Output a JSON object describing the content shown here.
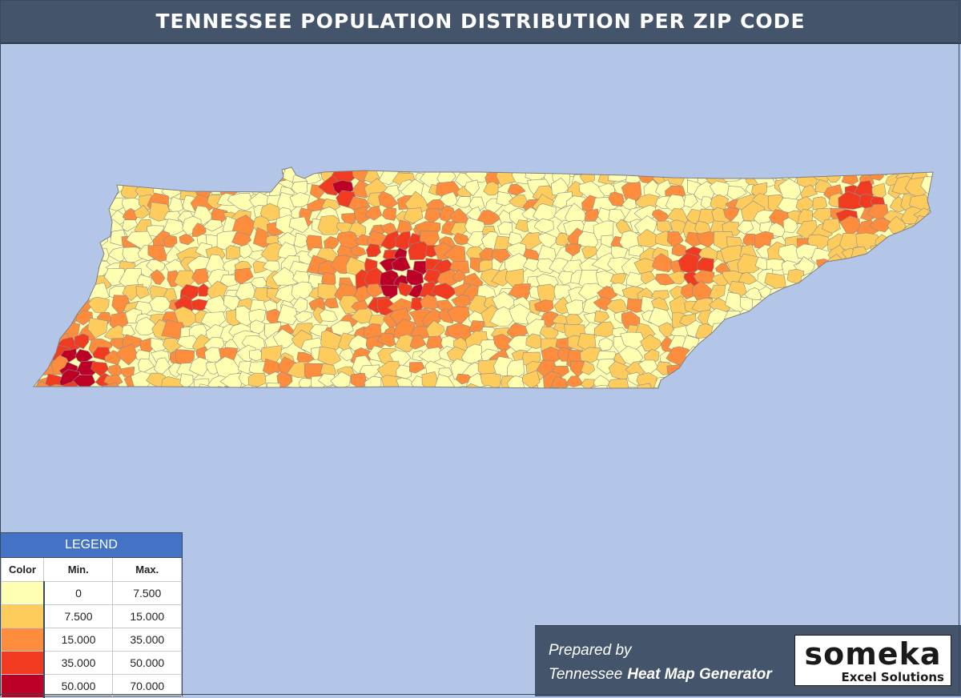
{
  "header": {
    "title": "TENNESSEE POPULATION DISTRIBUTION PER ZIP CODE"
  },
  "map": {
    "region": "Tennessee",
    "ocean_color": "#b4c6e7",
    "border_color": "#8c8c8c"
  },
  "legend": {
    "title": "LEGEND",
    "columns": {
      "color": "Color",
      "min": "Min.",
      "max": "Max."
    },
    "rows": [
      {
        "color": "#ffffb2",
        "min": "0",
        "max": "7.500"
      },
      {
        "color": "#fecc5c",
        "min": "7.500",
        "max": "15.000"
      },
      {
        "color": "#fd8d3c",
        "min": "15.000",
        "max": "35.000"
      },
      {
        "color": "#f03b20",
        "min": "35.000",
        "max": "50.000"
      },
      {
        "color": "#bd0026",
        "min": "50.000",
        "max": "70.000"
      }
    ]
  },
  "footer": {
    "prepared_by": "Prepared by",
    "tool_prefix": "Tennessee",
    "tool_name": "Heat Map Generator",
    "brand": "someka",
    "brand_sub": "Excel Solutions"
  }
}
